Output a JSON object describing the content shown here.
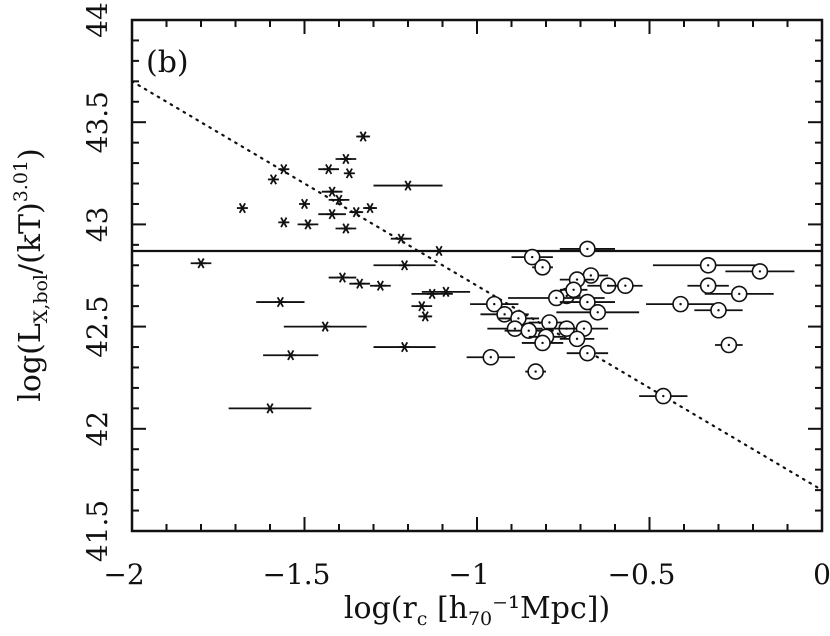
{
  "chart_data": {
    "type": "scatter",
    "panel_label": "(b)",
    "xlabel": "log(r_c [h_70^-1 Mpc])",
    "ylabel": "log(L_X,bol/(kT)^3.01)",
    "xlim": [
      -2,
      0
    ],
    "ylim": [
      41.5,
      44
    ],
    "x_ticks": [
      {
        "value": -2,
        "label": "−2"
      },
      {
        "value": -1.5,
        "label": "−1.5"
      },
      {
        "value": -1,
        "label": "−1"
      },
      {
        "value": -0.5,
        "label": "−0.5"
      },
      {
        "value": 0,
        "label": "0"
      }
    ],
    "y_ticks": [
      {
        "value": 41.5,
        "label": "41.5"
      },
      {
        "value": 42,
        "label": "42"
      },
      {
        "value": 42.5,
        "label": "42.5"
      },
      {
        "value": 43,
        "label": "43"
      },
      {
        "value": 43.5,
        "label": "43.5"
      },
      {
        "value": 44,
        "label": "44"
      }
    ],
    "horizontal_line": {
      "y": 42.87,
      "style": "solid"
    },
    "fit_line": {
      "x": [
        -2,
        0
      ],
      "y": [
        43.7,
        41.7
      ],
      "style": "dotted"
    },
    "series": [
      {
        "name": "stars",
        "marker": "asterisk",
        "points": [
          {
            "x": -1.59,
            "y": 43.22,
            "xerr": 0
          },
          {
            "x": -1.56,
            "y": 43.27,
            "xerr": 0
          },
          {
            "x": -1.68,
            "y": 43.08,
            "xerr": 0
          },
          {
            "x": -1.56,
            "y": 43.01,
            "xerr": 0
          },
          {
            "x": -1.5,
            "y": 43.1,
            "xerr": 0
          },
          {
            "x": -1.49,
            "y": 43.0,
            "xerr": 0.03
          },
          {
            "x": -1.43,
            "y": 43.27,
            "xerr": 0.03
          },
          {
            "x": -1.42,
            "y": 43.16,
            "xerr": 0.03
          },
          {
            "x": -1.38,
            "y": 43.32,
            "xerr": 0.03
          },
          {
            "x": -1.37,
            "y": 43.25,
            "xerr": 0
          },
          {
            "x": -1.33,
            "y": 43.43,
            "xerr": 0.02
          },
          {
            "x": -1.4,
            "y": 43.12,
            "xerr": 0.03
          },
          {
            "x": -1.42,
            "y": 43.05,
            "xerr": 0.04
          },
          {
            "x": -1.38,
            "y": 42.98,
            "xerr": 0.03
          },
          {
            "x": -1.35,
            "y": 43.06,
            "xerr": 0.02
          },
          {
            "x": -1.31,
            "y": 43.08,
            "xerr": 0.02
          },
          {
            "x": -1.2,
            "y": 43.19,
            "xerr": 0.1
          },
          {
            "x": -1.22,
            "y": 42.93,
            "xerr": 0.03
          },
          {
            "x": -1.8,
            "y": 42.81,
            "xerr": 0.03
          },
          {
            "x": -1.11,
            "y": 42.87,
            "xerr": 0.03
          },
          {
            "x": -1.21,
            "y": 42.8,
            "xerr": 0.09
          },
          {
            "x": -1.39,
            "y": 42.74,
            "xerr": 0.04
          },
          {
            "x": -1.34,
            "y": 42.71,
            "xerr": 0.03
          },
          {
            "x": -1.28,
            "y": 42.7,
            "xerr": 0.03
          },
          {
            "x": -1.09,
            "y": 42.67,
            "xerr": 0.07
          },
          {
            "x": -1.13,
            "y": 42.66,
            "xerr": 0.06
          },
          {
            "x": -1.16,
            "y": 42.6,
            "xerr": 0.03
          },
          {
            "x": -1.15,
            "y": 42.55,
            "xerr": 0.02
          },
          {
            "x": -1.57,
            "y": 42.62,
            "xerr": 0.07
          },
          {
            "x": -1.44,
            "y": 42.5,
            "xerr": 0.12
          },
          {
            "x": -1.21,
            "y": 42.4,
            "xerr": 0.09
          },
          {
            "x": -1.54,
            "y": 42.36,
            "xerr": 0.08
          },
          {
            "x": -1.6,
            "y": 42.1,
            "xerr": 0.12
          }
        ]
      },
      {
        "name": "circles",
        "marker": "circle",
        "points": [
          {
            "x": -0.68,
            "y": 42.88,
            "xerr": 0.08
          },
          {
            "x": -0.84,
            "y": 42.84,
            "xerr": 0.06
          },
          {
            "x": -0.81,
            "y": 42.79,
            "xerr": 0.03
          },
          {
            "x": -0.67,
            "y": 42.75,
            "xerr": 0.05
          },
          {
            "x": -0.71,
            "y": 42.73,
            "xerr": 0.05
          },
          {
            "x": -0.74,
            "y": 42.65,
            "xerr": 0.04
          },
          {
            "x": -0.72,
            "y": 42.68,
            "xerr": 0.04
          },
          {
            "x": -0.62,
            "y": 42.7,
            "xerr": 0.06
          },
          {
            "x": -0.57,
            "y": 42.7,
            "xerr": 0.05
          },
          {
            "x": -0.33,
            "y": 42.8,
            "xerr": 0.16
          },
          {
            "x": -0.18,
            "y": 42.77,
            "xerr": 0.1
          },
          {
            "x": -0.33,
            "y": 42.7,
            "xerr": 0.06
          },
          {
            "x": -0.24,
            "y": 42.66,
            "xerr": 0.1
          },
          {
            "x": -0.41,
            "y": 42.61,
            "xerr": 0.1
          },
          {
            "x": -0.3,
            "y": 42.58,
            "xerr": 0.07
          },
          {
            "x": -0.77,
            "y": 42.64,
            "xerr": 0.14
          },
          {
            "x": -0.68,
            "y": 42.62,
            "xerr": 0.08
          },
          {
            "x": -0.65,
            "y": 42.57,
            "xerr": 0.12
          },
          {
            "x": -0.95,
            "y": 42.61,
            "xerr": 0.07
          },
          {
            "x": -0.92,
            "y": 42.56,
            "xerr": 0.07
          },
          {
            "x": -0.88,
            "y": 42.54,
            "xerr": 0.06
          },
          {
            "x": -0.89,
            "y": 42.49,
            "xerr": 0.08
          },
          {
            "x": -0.85,
            "y": 42.48,
            "xerr": 0.07
          },
          {
            "x": -0.79,
            "y": 42.52,
            "xerr": 0.06
          },
          {
            "x": -0.8,
            "y": 42.45,
            "xerr": 0.05
          },
          {
            "x": -0.74,
            "y": 42.49,
            "xerr": 0.06
          },
          {
            "x": -0.69,
            "y": 42.49,
            "xerr": 0.07
          },
          {
            "x": -0.81,
            "y": 42.42,
            "xerr": 0.06
          },
          {
            "x": -0.71,
            "y": 42.44,
            "xerr": 0.05
          },
          {
            "x": -0.68,
            "y": 42.37,
            "xerr": 0.06
          },
          {
            "x": -0.27,
            "y": 42.41,
            "xerr": 0.04
          },
          {
            "x": -0.96,
            "y": 42.35,
            "xerr": 0.07
          },
          {
            "x": -0.83,
            "y": 42.28,
            "xerr": 0.03
          },
          {
            "x": -0.46,
            "y": 42.16,
            "xerr": 0.07
          }
        ]
      }
    ]
  }
}
